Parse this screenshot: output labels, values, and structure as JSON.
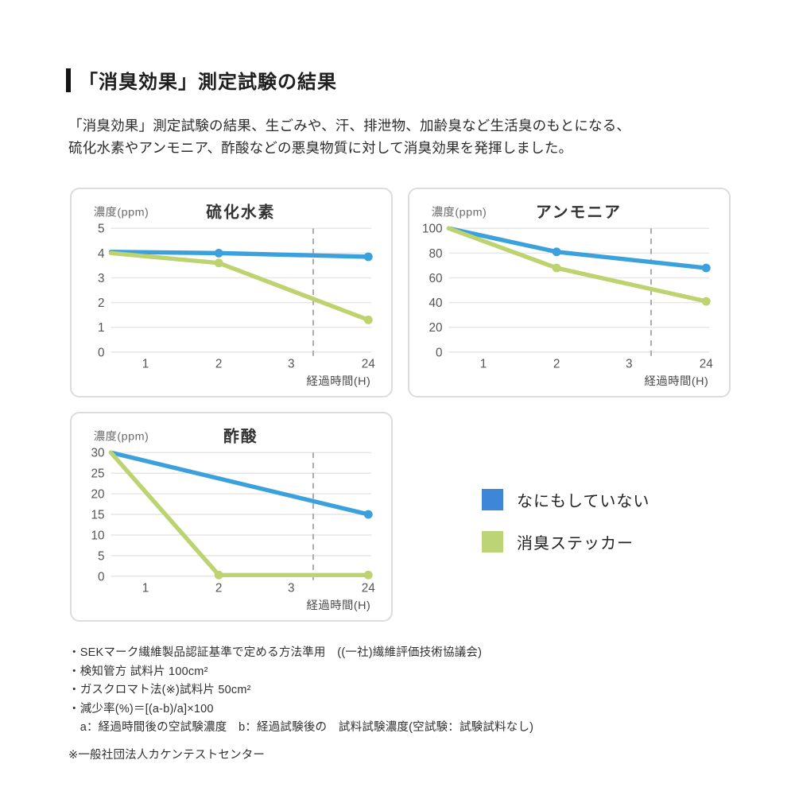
{
  "header": {
    "title": "「消臭効果」測定試験の結果",
    "description_lines": [
      "「消臭効果」測定試験の結果、生ごみや、汗、排泄物、加齢臭など生活臭のもとになる、",
      "硫化水素やアンモニア、酢酸などの悪臭物質に対して消臭効果を発揮しました。"
    ]
  },
  "colors": {
    "line_blue": "#3BA1DC",
    "line_green": "#BDD36F",
    "legend_blue": "#3E86D8",
    "legend_green": "#BCD476",
    "grid": "#E7E7E7",
    "dash": "#ABABAB",
    "tick_text": "#555555",
    "axis_label_text": "#4A4A4A",
    "unit_label_text": "#6B6B6B",
    "chart_title_text": "#333333",
    "panel_border": "#DCDCDC"
  },
  "chart_data": [
    {
      "type": "line",
      "title": "硫化水素",
      "unit_label": "濃度(ppm)",
      "x_axis_label": "経過時間(H)",
      "x_tick_labels": [
        "1",
        "2",
        "3",
        "24"
      ],
      "axis_break_after": "3",
      "ymax": 5,
      "y_ticks": [
        0,
        1,
        2,
        3,
        4,
        5
      ],
      "series": [
        {
          "name": "なにもしていない",
          "color_key": "line_blue",
          "points": [
            {
              "x": "0",
              "y": 4.05
            },
            {
              "x": "2",
              "y": 4.0,
              "dot": true
            },
            {
              "x": "24",
              "y": 3.85,
              "dot": true
            }
          ]
        },
        {
          "name": "消臭ステッカー",
          "color_key": "line_green",
          "points": [
            {
              "x": "0",
              "y": 4.0
            },
            {
              "x": "2",
              "y": 3.6,
              "dot": true
            },
            {
              "x": "24",
              "y": 1.3,
              "dot": true
            }
          ]
        }
      ]
    },
    {
      "type": "line",
      "title": "アンモニア",
      "unit_label": "濃度(ppm)",
      "x_axis_label": "経過時間(H)",
      "x_tick_labels": [
        "1",
        "2",
        "3",
        "24"
      ],
      "axis_break_after": "3",
      "ymax": 100,
      "y_ticks": [
        0,
        20,
        40,
        60,
        80,
        100
      ],
      "series": [
        {
          "name": "なにもしていない",
          "color_key": "line_blue",
          "points": [
            {
              "x": "0",
              "y": 100
            },
            {
              "x": "2",
              "y": 81,
              "dot": true
            },
            {
              "x": "24",
              "y": 68,
              "dot": true
            }
          ]
        },
        {
          "name": "消臭ステッカー",
          "color_key": "line_green",
          "points": [
            {
              "x": "0",
              "y": 100
            },
            {
              "x": "2",
              "y": 68,
              "dot": true
            },
            {
              "x": "24",
              "y": 41,
              "dot": true
            }
          ]
        }
      ]
    },
    {
      "type": "line",
      "title": "酢酸",
      "unit_label": "濃度(ppm)",
      "x_axis_label": "経過時間(H)",
      "x_tick_labels": [
        "1",
        "2",
        "3",
        "24"
      ],
      "axis_break_after": "3",
      "ymax": 30,
      "y_ticks": [
        0,
        5,
        10,
        15,
        20,
        25,
        30
      ],
      "series": [
        {
          "name": "なにもしていない",
          "color_key": "line_blue",
          "points": [
            {
              "x": "0",
              "y": 30
            },
            {
              "x": "24",
              "y": 15,
              "dot": true
            }
          ]
        },
        {
          "name": "消臭ステッカー",
          "color_key": "line_green",
          "points": [
            {
              "x": "0",
              "y": 30
            },
            {
              "x": "2",
              "y": 0.3,
              "dot": true
            },
            {
              "x": "24",
              "y": 0.3,
              "dot": true
            }
          ]
        }
      ]
    }
  ],
  "legend": {
    "items": [
      {
        "label": "なにもしていない",
        "color_key": "legend_blue"
      },
      {
        "label": "消臭ステッカー",
        "color_key": "legend_green"
      }
    ]
  },
  "footnotes": {
    "items": [
      "・SEKマーク繊維製品認証基準で定める方法準用　((一社)繊維評価技術協議会)",
      "・検知管方 試料片 100cm²",
      "・ガスクロマト法(※)試料片 50cm²",
      "・減少率(%)＝[(a-b)/a]×100",
      "　a：経過時間後の空試験濃度　b：経過試験後の　試料試験濃度(空試験：試験試料なし)"
    ],
    "footer_note": "※一般社団法人カケンテストセンター"
  }
}
